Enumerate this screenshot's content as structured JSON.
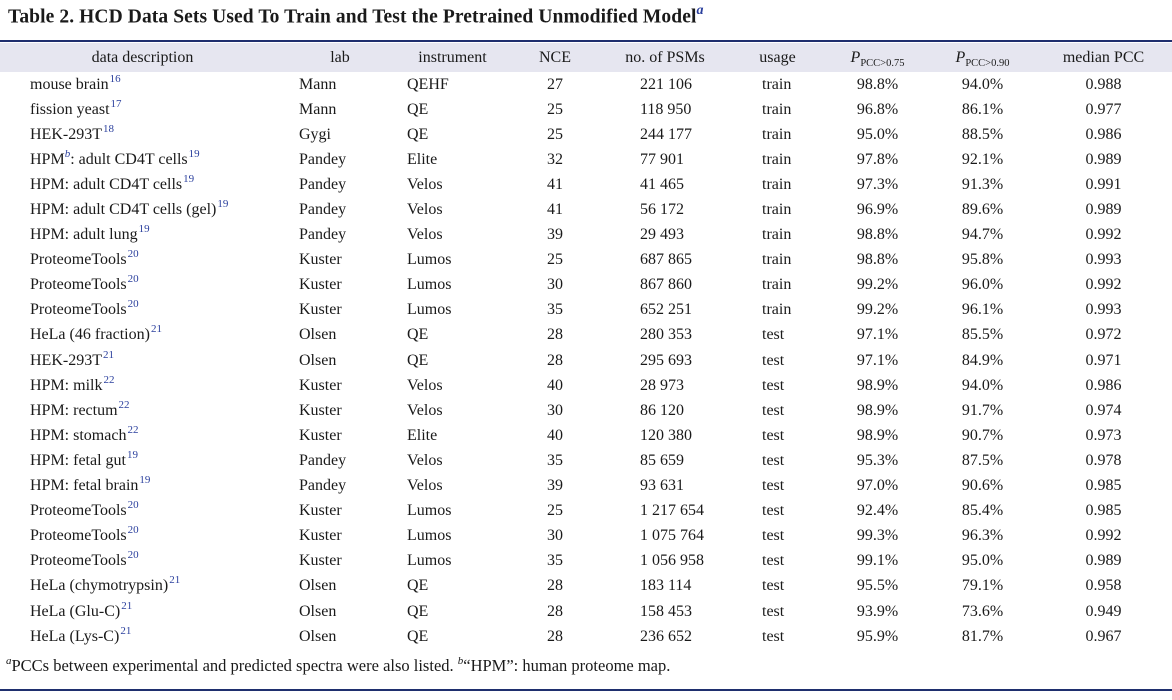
{
  "caption": {
    "title": "Table 2. HCD Data Sets Used To Train and Test the Pretrained Unmodified Model",
    "note_mark": "a"
  },
  "columns": {
    "desc": "data description",
    "lab": "lab",
    "instrument": "instrument",
    "nce": "NCE",
    "psms": "no. of PSMs",
    "usage": "usage",
    "p75_var": "P",
    "p75_sub": "PCC>0.75",
    "p90_var": "P",
    "p90_sub": "PCC>0.90",
    "median": "median PCC"
  },
  "rows": [
    {
      "desc": "mouse brain",
      "note": "",
      "ref": "16",
      "desc_after": "",
      "lab": "Mann",
      "instrument": "QEHF",
      "nce": "27",
      "psms": "221 106",
      "usage": "train",
      "p75": "98.8%",
      "p90": "94.0%",
      "median": "0.988"
    },
    {
      "desc": "fission yeast",
      "note": "",
      "ref": "17",
      "desc_after": "",
      "lab": "Mann",
      "instrument": "QE",
      "nce": "25",
      "psms": "118 950",
      "usage": "train",
      "p75": "96.8%",
      "p90": "86.1%",
      "median": "0.977"
    },
    {
      "desc": "HEK-293T",
      "note": "",
      "ref": "18",
      "desc_after": "",
      "lab": "Gygi",
      "instrument": "QE",
      "nce": "25",
      "psms": "244 177",
      "usage": "train",
      "p75": "95.0%",
      "p90": "88.5%",
      "median": "0.986"
    },
    {
      "desc": "HPM",
      "note": "b",
      "ref": "",
      "desc_after": ": adult CD4T cells",
      "ref2": "19",
      "lab": "Pandey",
      "instrument": "Elite",
      "nce": "32",
      "psms": "77 901",
      "usage": "train",
      "p75": "97.8%",
      "p90": "92.1%",
      "median": "0.989"
    },
    {
      "desc": "HPM: adult CD4T cells",
      "note": "",
      "ref": "19",
      "desc_after": "",
      "lab": "Pandey",
      "instrument": "Velos",
      "nce": "41",
      "psms": "41 465",
      "usage": "train",
      "p75": "97.3%",
      "p90": "91.3%",
      "median": "0.991"
    },
    {
      "desc": "HPM: adult CD4T cells (gel)",
      "note": "",
      "ref": "19",
      "desc_after": "",
      "lab": "Pandey",
      "instrument": "Velos",
      "nce": "41",
      "psms": "56 172",
      "usage": "train",
      "p75": "96.9%",
      "p90": "89.6%",
      "median": "0.989"
    },
    {
      "desc": "HPM: adult lung",
      "note": "",
      "ref": "19",
      "desc_after": "",
      "lab": "Pandey",
      "instrument": "Velos",
      "nce": "39",
      "psms": "29 493",
      "usage": "train",
      "p75": "98.8%",
      "p90": "94.7%",
      "median": "0.992"
    },
    {
      "desc": "ProteomeTools",
      "note": "",
      "ref": "20",
      "desc_after": "",
      "lab": "Kuster",
      "instrument": "Lumos",
      "nce": "25",
      "psms": "687 865",
      "usage": "train",
      "p75": "98.8%",
      "p90": "95.8%",
      "median": "0.993"
    },
    {
      "desc": "ProteomeTools",
      "note": "",
      "ref": "20",
      "desc_after": "",
      "lab": "Kuster",
      "instrument": "Lumos",
      "nce": "30",
      "psms": "867 860",
      "usage": "train",
      "p75": "99.2%",
      "p90": "96.0%",
      "median": "0.992"
    },
    {
      "desc": "ProteomeTools",
      "note": "",
      "ref": "20",
      "desc_after": "",
      "lab": "Kuster",
      "instrument": "Lumos",
      "nce": "35",
      "psms": "652 251",
      "usage": "train",
      "p75": "99.2%",
      "p90": "96.1%",
      "median": "0.993"
    },
    {
      "desc": "HeLa (46 fraction)",
      "note": "",
      "ref": "21",
      "desc_after": "",
      "lab": "Olsen",
      "instrument": "QE",
      "nce": "28",
      "psms": "280 353",
      "usage": "test",
      "p75": "97.1%",
      "p90": "85.5%",
      "median": "0.972"
    },
    {
      "desc": "HEK-293T",
      "note": "",
      "ref": "21",
      "desc_after": "",
      "lab": "Olsen",
      "instrument": "QE",
      "nce": "28",
      "psms": "295 693",
      "usage": "test",
      "p75": "97.1%",
      "p90": "84.9%",
      "median": "0.971"
    },
    {
      "desc": "HPM: milk",
      "note": "",
      "ref": "22",
      "desc_after": "",
      "lab": "Kuster",
      "instrument": "Velos",
      "nce": "40",
      "psms": "28 973",
      "usage": "test",
      "p75": "98.9%",
      "p90": "94.0%",
      "median": "0.986"
    },
    {
      "desc": "HPM: rectum",
      "note": "",
      "ref": "22",
      "desc_after": "",
      "lab": "Kuster",
      "instrument": "Velos",
      "nce": "30",
      "psms": "86 120",
      "usage": "test",
      "p75": "98.9%",
      "p90": "91.7%",
      "median": "0.974"
    },
    {
      "desc": "HPM: stomach",
      "note": "",
      "ref": "22",
      "desc_after": "",
      "lab": "Kuster",
      "instrument": "Elite",
      "nce": "40",
      "psms": "120 380",
      "usage": "test",
      "p75": "98.9%",
      "p90": "90.7%",
      "median": "0.973"
    },
    {
      "desc": "HPM: fetal gut",
      "note": "",
      "ref": "19",
      "desc_after": "",
      "lab": "Pandey",
      "instrument": "Velos",
      "nce": "35",
      "psms": "85 659",
      "usage": "test",
      "p75": "95.3%",
      "p90": "87.5%",
      "median": "0.978"
    },
    {
      "desc": "HPM: fetal brain",
      "note": "",
      "ref": "19",
      "desc_after": "",
      "lab": "Pandey",
      "instrument": "Velos",
      "nce": "39",
      "psms": "93 631",
      "usage": "test",
      "p75": "97.0%",
      "p90": "90.6%",
      "median": "0.985"
    },
    {
      "desc": "ProteomeTools",
      "note": "",
      "ref": "20",
      "desc_after": "",
      "lab": "Kuster",
      "instrument": "Lumos",
      "nce": "25",
      "psms": "1 217 654",
      "usage": "test",
      "p75": "92.4%",
      "p90": "85.4%",
      "median": "0.985"
    },
    {
      "desc": "ProteomeTools",
      "note": "",
      "ref": "20",
      "desc_after": "",
      "lab": "Kuster",
      "instrument": "Lumos",
      "nce": "30",
      "psms": "1 075 764",
      "usage": "test",
      "p75": "99.3%",
      "p90": "96.3%",
      "median": "0.992"
    },
    {
      "desc": "ProteomeTools",
      "note": "",
      "ref": "20",
      "desc_after": "",
      "lab": "Kuster",
      "instrument": "Lumos",
      "nce": "35",
      "psms": "1 056 958",
      "usage": "test",
      "p75": "99.1%",
      "p90": "95.0%",
      "median": "0.989"
    },
    {
      "desc": "HeLa (chymotrypsin)",
      "note": "",
      "ref": "21",
      "desc_after": "",
      "lab": "Olsen",
      "instrument": "QE",
      "nce": "28",
      "psms": "183 114",
      "usage": "test",
      "p75": "95.5%",
      "p90": "79.1%",
      "median": "0.958"
    },
    {
      "desc": "HeLa (Glu-C)",
      "note": "",
      "ref": "21",
      "desc_after": "",
      "lab": "Olsen",
      "instrument": "QE",
      "nce": "28",
      "psms": "158 453",
      "usage": "test",
      "p75": "93.9%",
      "p90": "73.6%",
      "median": "0.949"
    },
    {
      "desc": "HeLa (Lys-C)",
      "note": "",
      "ref": "21",
      "desc_after": "",
      "lab": "Olsen",
      "instrument": "QE",
      "nce": "28",
      "psms": "236 652",
      "usage": "test",
      "p75": "95.9%",
      "p90": "81.7%",
      "median": "0.967"
    }
  ],
  "footnote": {
    "a_mark": "a",
    "a_text": "PCCs between experimental and predicted spectra were also listed. ",
    "b_mark": "b",
    "b_text": "“HPM”: human proteome map."
  },
  "colors": {
    "header_bg": "#e6e6f0",
    "rule": "#1f2f6e",
    "link": "#2a3f9d"
  }
}
